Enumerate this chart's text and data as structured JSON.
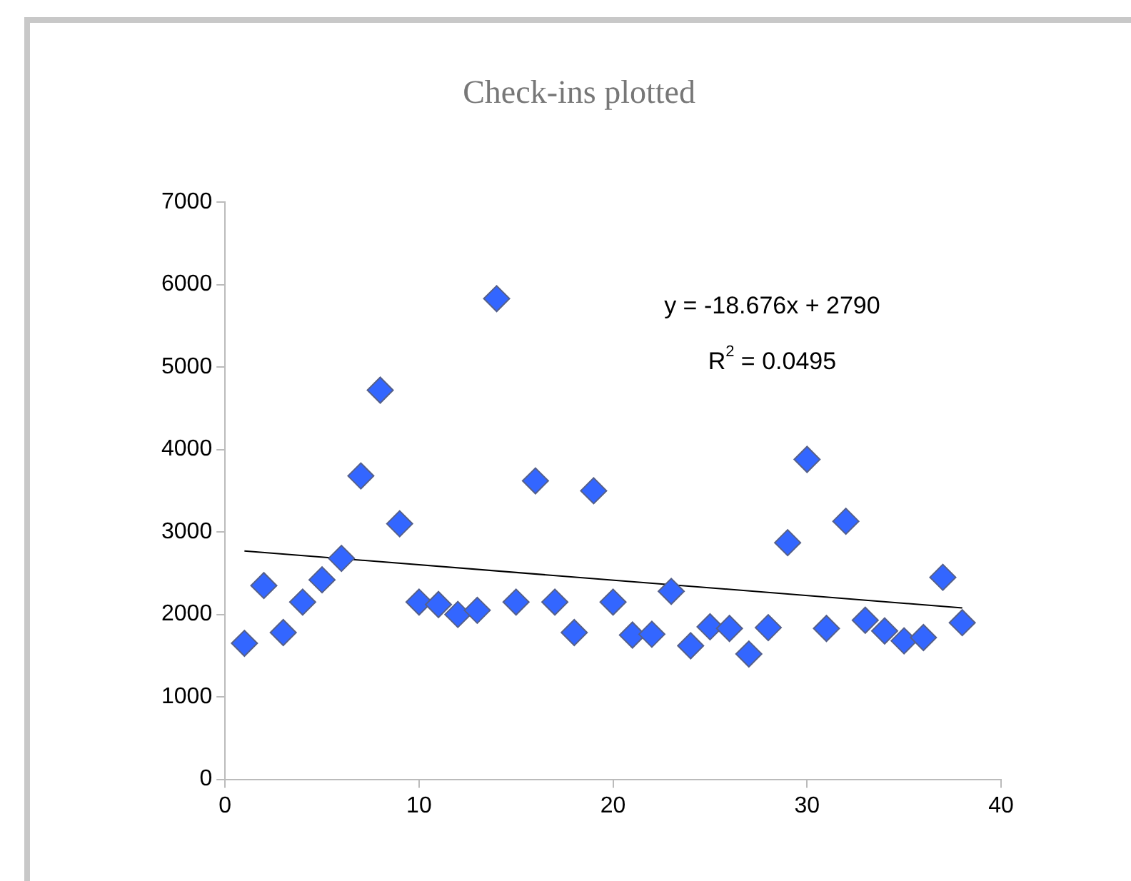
{
  "chart_data": {
    "type": "scatter",
    "title": "Check-ins plotted",
    "marker": "diamond",
    "grid": false,
    "legend": false,
    "xlim": [
      0,
      40
    ],
    "xticks": [
      0,
      10,
      20,
      30,
      40
    ],
    "ylim": [
      0,
      7000
    ],
    "yticks": [
      0,
      1000,
      2000,
      3000,
      4000,
      5000,
      6000,
      7000
    ],
    "series": [
      {
        "color": "#3366ff",
        "x": [
          1,
          2,
          3,
          4,
          5,
          6,
          7,
          8,
          9,
          10,
          11,
          12,
          13,
          14,
          15,
          16,
          17,
          18,
          19,
          20,
          21,
          22,
          23,
          24,
          25,
          26,
          27,
          28,
          29,
          30,
          31,
          32,
          33,
          34,
          35,
          36,
          37,
          38
        ],
        "values": [
          1650,
          2350,
          1780,
          2150,
          2420,
          2680,
          3680,
          4720,
          3100,
          2150,
          2120,
          2000,
          2050,
          5830,
          2150,
          3620,
          2150,
          1780,
          3500,
          2150,
          1750,
          1760,
          2280,
          1620,
          1850,
          1830,
          1520,
          1840,
          2870,
          3880,
          1830,
          3130,
          1930,
          1800,
          1680,
          1720,
          2450,
          1900
        ]
      },
      {
        "type": "line",
        "marker": "none",
        "color": "#000000",
        "x": [
          1,
          38
        ],
        "values": [
          2770,
          2080
        ]
      }
    ],
    "annotations": [
      "y = -18.676x + 2790",
      "R$^{2}$ = 0.0495"
    ]
  }
}
